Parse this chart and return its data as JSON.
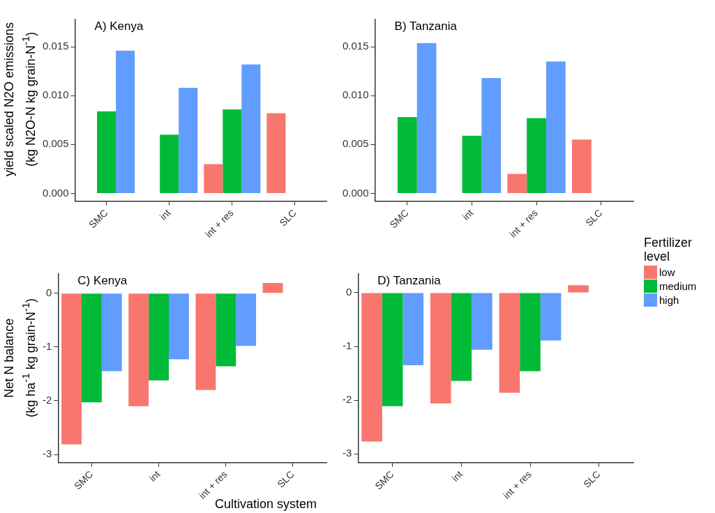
{
  "chart_data": [
    {
      "type": "bar",
      "title": "A) Kenya",
      "ylabel": "yield scaled N2O emissions\n(kg N2O-N kg grain-N$^{-1}$)",
      "categories": [
        "SMC",
        "int",
        "int + res",
        "SLC"
      ],
      "ylim": [
        -0.0008,
        0.0178
      ],
      "yticks": [
        {
          "value": 0,
          "label": "0.000"
        },
        {
          "value": 0.005,
          "label": "0.005"
        },
        {
          "value": 0.01,
          "label": "0.010"
        },
        {
          "value": 0.015,
          "label": "0.015"
        }
      ],
      "grid": false,
      "series": [
        {
          "color": "#f8766d",
          "values": [
            null,
            null,
            0.003,
            0.0082
          ]
        },
        {
          "color": "#00ba38",
          "values": [
            0.0084,
            0.006,
            0.0086,
            null
          ]
        },
        {
          "color": "#619cff",
          "values": [
            0.0146,
            0.0108,
            0.0132,
            null
          ]
        }
      ]
    },
    {
      "type": "bar",
      "title": "B) Tanzania",
      "categories": [
        "SMC",
        "int",
        "int + res",
        "SLC"
      ],
      "ylim": [
        -0.0008,
        0.0178
      ],
      "yticks": [
        {
          "value": 0,
          "label": "0.000"
        },
        {
          "value": 0.005,
          "label": "0.005"
        },
        {
          "value": 0.01,
          "label": "0.010"
        },
        {
          "value": 0.015,
          "label": "0.015"
        }
      ],
      "grid": false,
      "series": [
        {
          "color": "#f8766d",
          "values": [
            null,
            null,
            0.002,
            0.0055
          ]
        },
        {
          "color": "#00ba38",
          "values": [
            0.0078,
            0.0059,
            0.0077,
            null
          ]
        },
        {
          "color": "#619cff",
          "values": [
            0.0154,
            0.0118,
            0.0135,
            null
          ]
        }
      ]
    },
    {
      "type": "bar",
      "title": "C) Kenya",
      "ylabel": "Net N balance\n(kg ha$^{-1}$ kg grain-N$^{-1}$)",
      "xlabel": "Cultivation system",
      "categories": [
        "SMC",
        "int",
        "int + res",
        "SLC"
      ],
      "ylim": [
        -3.15,
        0.36
      ],
      "yticks": [
        -3,
        -2,
        -1,
        0
      ],
      "grid": false,
      "series": [
        {
          "color": "#f8766d",
          "values": [
            -2.81,
            -2.1,
            -1.8,
            0.19
          ]
        },
        {
          "color": "#00ba38",
          "values": [
            -2.03,
            -1.62,
            -1.36,
            null
          ]
        },
        {
          "color": "#619cff",
          "values": [
            -1.45,
            -1.23,
            -0.98,
            null
          ]
        }
      ]
    },
    {
      "type": "bar",
      "title": "D) Tanzania",
      "legend_title": "Fertilizer\nlevel",
      "legend": "right",
      "categories": [
        "SMC",
        "int",
        "int + res",
        "SLC"
      ],
      "ylim": [
        -3.16,
        0.35
      ],
      "yticks": [
        -3,
        -2,
        -1,
        0
      ],
      "grid": false,
      "series": [
        {
          "name": "low",
          "color": "#f8766d",
          "values": [
            -2.77,
            -2.06,
            -1.86,
            0.14
          ]
        },
        {
          "name": "medium",
          "color": "#00ba38",
          "values": [
            -2.11,
            -1.64,
            -1.46,
            null
          ]
        },
        {
          "name": "high",
          "color": "#619cff",
          "values": [
            -1.35,
            -1.06,
            -0.89,
            null
          ]
        }
      ]
    }
  ]
}
